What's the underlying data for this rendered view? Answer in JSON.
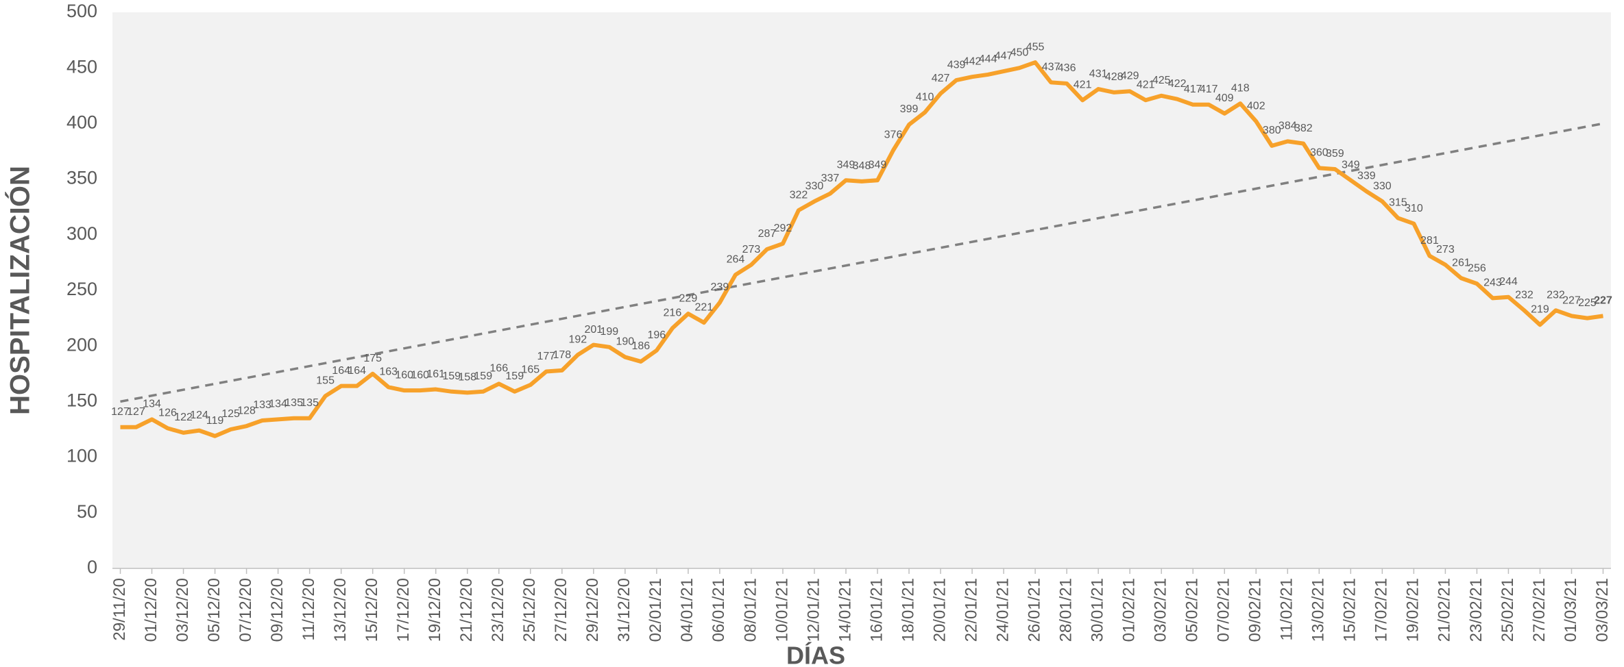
{
  "chart_data": {
    "type": "line",
    "x_label": "DÍAS",
    "y_label": "HOSPITALIZACIÓN",
    "categories": [
      "29/11/20",
      null,
      "01/12/20",
      null,
      "03/12/20",
      null,
      "05/12/20",
      null,
      "07/12/20",
      null,
      "09/12/20",
      null,
      "11/12/20",
      null,
      "13/12/20",
      null,
      "15/12/20",
      null,
      "17/12/20",
      null,
      "19/12/20",
      null,
      "21/12/20",
      null,
      "23/12/20",
      null,
      "25/12/20",
      null,
      "27/12/20",
      null,
      "29/12/20",
      null,
      "31/12/20",
      null,
      "02/01/21",
      null,
      "04/01/21",
      null,
      "06/01/21",
      null,
      "08/01/21",
      null,
      "10/01/21",
      null,
      "12/01/21",
      null,
      "14/01/21",
      null,
      "16/01/21",
      null,
      "18/01/21",
      null,
      "20/01/21",
      null,
      "22/01/21",
      null,
      "24/01/21",
      null,
      "26/01/21",
      null,
      "28/01/21",
      null,
      "30/01/21",
      null,
      "01/02/21",
      null,
      "03/02/21",
      null,
      "05/02/21",
      null,
      "07/02/21",
      null,
      "09/02/21",
      null,
      "11/02/21",
      null,
      "13/02/21",
      null,
      "15/02/21",
      null,
      "17/02/21",
      null,
      "19/02/21",
      null,
      "21/02/21",
      null,
      "23/02/21",
      null,
      "25/02/21",
      null,
      "27/02/21",
      null,
      "01/03/21",
      null,
      "03/03/21"
    ],
    "series": [
      {
        "name": "Hospitalización",
        "color": "#f7a12a",
        "values": [
          127,
          127,
          134,
          126,
          122,
          124,
          119,
          125,
          128,
          133,
          134,
          135,
          135,
          155,
          164,
          164,
          175,
          163,
          160,
          160,
          161,
          159,
          158,
          159,
          166,
          159,
          165,
          177,
          178,
          192,
          201,
          199,
          190,
          186,
          196,
          216,
          229,
          221,
          239,
          264,
          273,
          287,
          292,
          322,
          330,
          337,
          349,
          348,
          349,
          376,
          399,
          410,
          427,
          439,
          442,
          444,
          447,
          450,
          455,
          437,
          436,
          421,
          431,
          428,
          429,
          421,
          425,
          422,
          417,
          417,
          409,
          418,
          402,
          380,
          384,
          382,
          360,
          359,
          349,
          339,
          330,
          315,
          310,
          281,
          273,
          261,
          256,
          243,
          244,
          232,
          219,
          232,
          227,
          225,
          227
        ]
      }
    ],
    "trendline": {
      "color": "#808080",
      "values": [
        150,
        400
      ]
    },
    "ylim": [
      0,
      500
    ],
    "yticks": [
      0,
      50,
      100,
      150,
      200,
      250,
      300,
      350,
      400,
      450,
      500
    ],
    "grid": false
  }
}
